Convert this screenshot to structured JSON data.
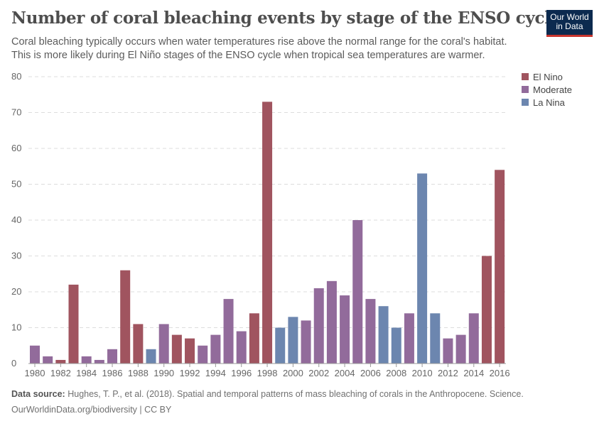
{
  "header": {
    "title": "Number of coral bleaching events by stage of the ENSO cycle",
    "subtitle_line1": "Coral bleaching typically occurs when water temperatures rise above the normal range for the coral's habitat.",
    "subtitle_line2": "This is more likely during El Niño stages of the ENSO cycle when tropical sea temperatures are warmer.",
    "logo_line1": "Our World",
    "logo_line2": "in Data"
  },
  "footer": {
    "source_label": "Data source:",
    "source_text": "Hughes, T. P., et al. (2018). Spatial and temporal patterns of mass bleaching of corals in the Anthropocene. Science.",
    "credit": "OurWorldinData.org/biodiversity | CC BY"
  },
  "chart_data": {
    "type": "bar",
    "ylim": [
      0,
      80
    ],
    "yticks": [
      0,
      10,
      20,
      30,
      40,
      50,
      60,
      70,
      80
    ],
    "xticks": [
      1980,
      1982,
      1984,
      1986,
      1988,
      1990,
      1992,
      1994,
      1996,
      1998,
      2000,
      2002,
      2004,
      2006,
      2008,
      2010,
      2012,
      2014,
      2016
    ],
    "grid": "horizontal dashed",
    "legend_placement": "right",
    "colors": {
      "El Nino": "#a0545f",
      "Moderate": "#926b9b",
      "La Nina": "#6c86af"
    },
    "legend": [
      "El Nino",
      "Moderate",
      "La Nina"
    ],
    "years": [
      1980,
      1981,
      1982,
      1983,
      1984,
      1985,
      1986,
      1987,
      1988,
      1989,
      1990,
      1991,
      1992,
      1993,
      1994,
      1995,
      1996,
      1997,
      1998,
      1999,
      2000,
      2001,
      2002,
      2003,
      2004,
      2005,
      2006,
      2007,
      2008,
      2009,
      2010,
      2011,
      2012,
      2013,
      2014,
      2015,
      2016
    ],
    "values": [
      5,
      2,
      1,
      22,
      2,
      1,
      4,
      26,
      11,
      4,
      11,
      8,
      7,
      5,
      8,
      18,
      9,
      14,
      73,
      10,
      13,
      12,
      21,
      23,
      19,
      40,
      18,
      16,
      10,
      14,
      53,
      14,
      7,
      8,
      14,
      30,
      54
    ],
    "stage": [
      "Moderate",
      "Moderate",
      "El Nino",
      "El Nino",
      "Moderate",
      "Moderate",
      "Moderate",
      "El Nino",
      "El Nino",
      "La Nina",
      "Moderate",
      "El Nino",
      "El Nino",
      "Moderate",
      "Moderate",
      "Moderate",
      "Moderate",
      "El Nino",
      "El Nino",
      "La Nina",
      "La Nina",
      "Moderate",
      "Moderate",
      "Moderate",
      "Moderate",
      "Moderate",
      "Moderate",
      "La Nina",
      "La Nina",
      "Moderate",
      "La Nina",
      "La Nina",
      "Moderate",
      "Moderate",
      "Moderate",
      "El Nino",
      "El Nino"
    ]
  }
}
